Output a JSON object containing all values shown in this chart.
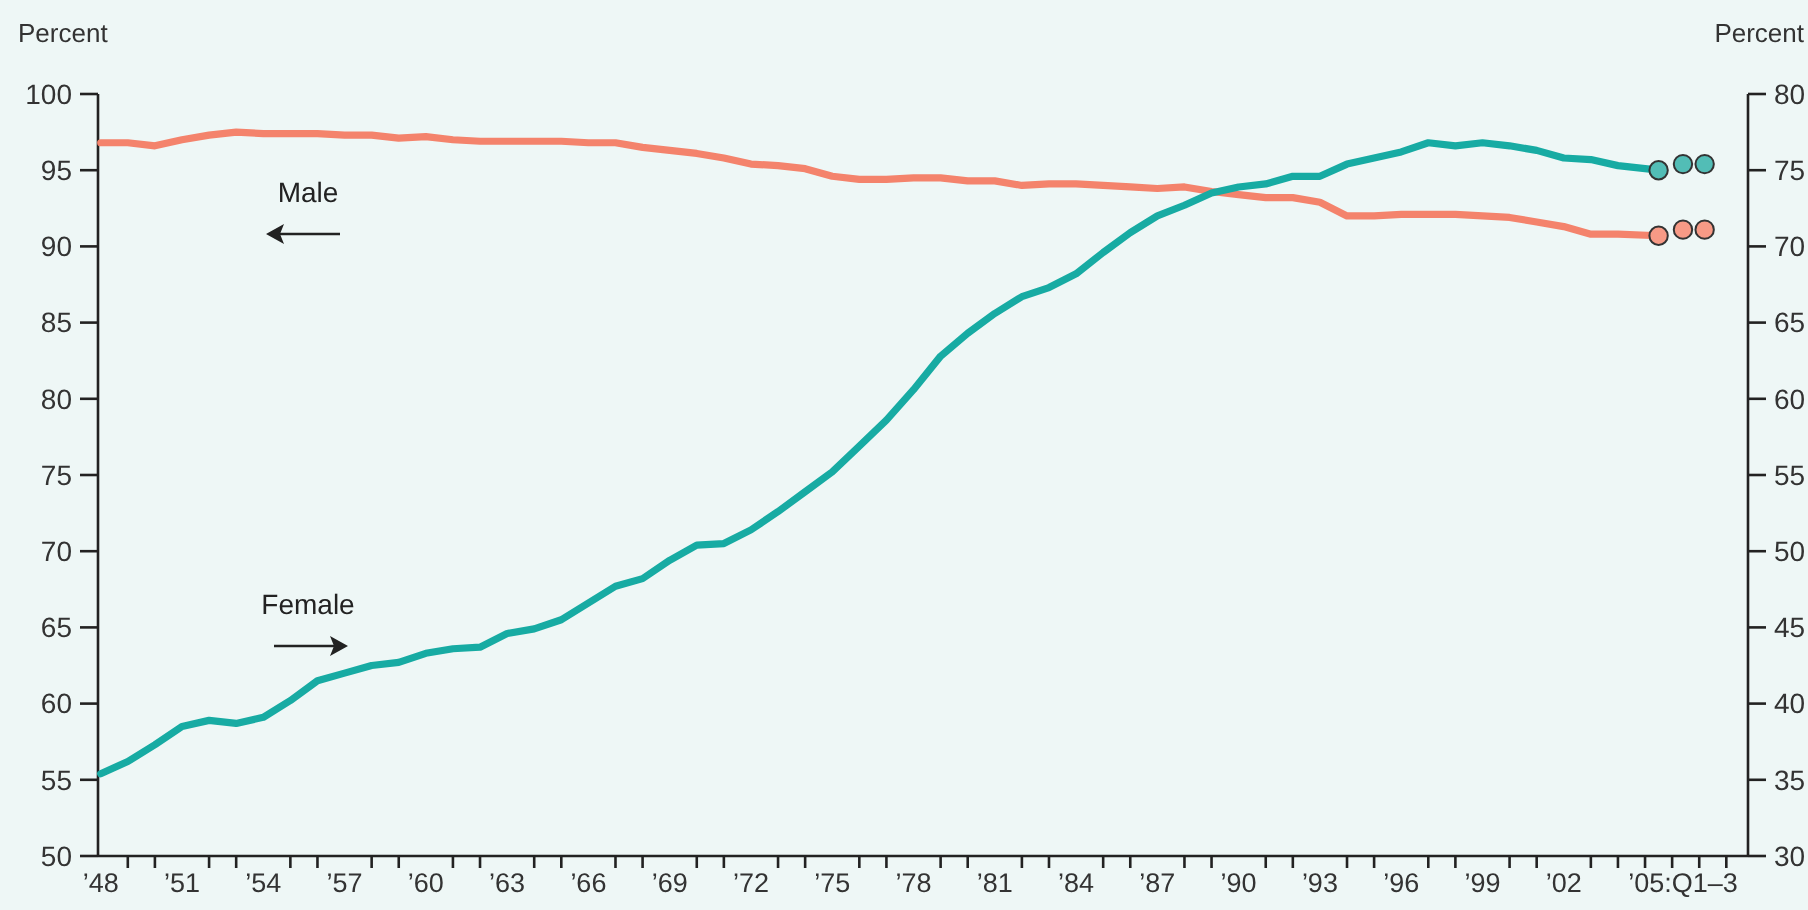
{
  "chart_data": {
    "type": "line",
    "ylabel": "Percent",
    "y2label": "Percent",
    "xlim": [
      1947.9,
      2008.8
    ],
    "ylim": [
      50,
      100
    ],
    "y2lim": [
      30,
      80
    ],
    "yticks": [
      50,
      55,
      60,
      65,
      70,
      75,
      80,
      85,
      90,
      95,
      100
    ],
    "y2ticks": [
      30,
      35,
      40,
      45,
      50,
      55,
      60,
      65,
      70,
      75,
      80
    ],
    "xticks": [
      {
        "value": 1948,
        "label": "’48"
      },
      {
        "value": 1949,
        "label": null
      },
      {
        "value": 1950,
        "label": null
      },
      {
        "value": 1951,
        "label": "’51"
      },
      {
        "value": 1952,
        "label": null
      },
      {
        "value": 1953,
        "label": null
      },
      {
        "value": 1954,
        "label": "’54"
      },
      {
        "value": 1955,
        "label": null
      },
      {
        "value": 1956,
        "label": null
      },
      {
        "value": 1957,
        "label": "’57"
      },
      {
        "value": 1958,
        "label": null
      },
      {
        "value": 1959,
        "label": null
      },
      {
        "value": 1960,
        "label": "’60"
      },
      {
        "value": 1961,
        "label": null
      },
      {
        "value": 1962,
        "label": null
      },
      {
        "value": 1963,
        "label": "’63"
      },
      {
        "value": 1964,
        "label": null
      },
      {
        "value": 1965,
        "label": null
      },
      {
        "value": 1966,
        "label": "’66"
      },
      {
        "value": 1967,
        "label": null
      },
      {
        "value": 1968,
        "label": null
      },
      {
        "value": 1969,
        "label": "’69"
      },
      {
        "value": 1970,
        "label": null
      },
      {
        "value": 1971,
        "label": null
      },
      {
        "value": 1972,
        "label": "’72"
      },
      {
        "value": 1973,
        "label": null
      },
      {
        "value": 1974,
        "label": null
      },
      {
        "value": 1975,
        "label": "’75"
      },
      {
        "value": 1976,
        "label": null
      },
      {
        "value": 1977,
        "label": null
      },
      {
        "value": 1978,
        "label": "’78"
      },
      {
        "value": 1979,
        "label": null
      },
      {
        "value": 1980,
        "label": null
      },
      {
        "value": 1981,
        "label": "’81"
      },
      {
        "value": 1982,
        "label": null
      },
      {
        "value": 1983,
        "label": null
      },
      {
        "value": 1984,
        "label": "’84"
      },
      {
        "value": 1985,
        "label": null
      },
      {
        "value": 1986,
        "label": null
      },
      {
        "value": 1987,
        "label": "’87"
      },
      {
        "value": 1988,
        "label": null
      },
      {
        "value": 1989,
        "label": null
      },
      {
        "value": 1990,
        "label": "’90"
      },
      {
        "value": 1991,
        "label": null
      },
      {
        "value": 1992,
        "label": null
      },
      {
        "value": 1993,
        "label": "’93"
      },
      {
        "value": 1994,
        "label": null
      },
      {
        "value": 1995,
        "label": null
      },
      {
        "value": 1996,
        "label": "’96"
      },
      {
        "value": 1997,
        "label": null
      },
      {
        "value": 1998,
        "label": null
      },
      {
        "value": 1999,
        "label": "’99"
      },
      {
        "value": 2000,
        "label": null
      },
      {
        "value": 2001,
        "label": null
      },
      {
        "value": 2002,
        "label": "’02"
      },
      {
        "value": 2003,
        "label": null
      },
      {
        "value": 2004,
        "label": null
      },
      {
        "value": 2005,
        "label": null
      },
      {
        "value": 2006,
        "label": null
      },
      {
        "value": 2007,
        "label": null
      },
      {
        "value": 2008,
        "label": null
      },
      {
        "value": 2006.4,
        "label": "’05:Q1–3"
      }
    ],
    "grid": false,
    "line_style": "solid",
    "series": [
      {
        "name": "Male",
        "axis": "y",
        "marker": "none",
        "color": "#f4836c",
        "x": [
          1948,
          1949,
          1950,
          1951,
          1952,
          1953,
          1954,
          1955,
          1956,
          1957,
          1958,
          1959,
          1960,
          1961,
          1962,
          1963,
          1964,
          1965,
          1966,
          1967,
          1968,
          1969,
          1970,
          1971,
          1972,
          1973,
          1974,
          1975,
          1976,
          1977,
          1978,
          1979,
          1980,
          1981,
          1982,
          1983,
          1984,
          1985,
          1986,
          1987,
          1988,
          1989,
          1990,
          1991,
          1992,
          1993,
          1994,
          1995,
          1996,
          1997,
          1998,
          1999,
          2000,
          2001,
          2002,
          2003,
          2004,
          2005.5
        ],
        "values": [
          96.8,
          96.8,
          96.6,
          97.0,
          97.3,
          97.5,
          97.4,
          97.4,
          97.4,
          97.3,
          97.3,
          97.1,
          97.2,
          97.0,
          96.9,
          96.9,
          96.9,
          96.9,
          96.8,
          96.8,
          96.5,
          96.3,
          96.1,
          95.8,
          95.4,
          95.3,
          95.1,
          94.6,
          94.4,
          94.4,
          94.5,
          94.5,
          94.3,
          94.3,
          94.0,
          94.1,
          94.1,
          94.0,
          93.9,
          93.8,
          93.9,
          93.6,
          93.4,
          93.2,
          93.2,
          92.9,
          92.0,
          92.0,
          92.1,
          92.1,
          92.1,
          92.0,
          91.9,
          91.6,
          91.3,
          90.8,
          90.8,
          90.7
        ]
      },
      {
        "name": "Female",
        "axis": "y2",
        "marker": "none",
        "color": "#17aba3",
        "x": [
          1948,
          1949,
          1950,
          1951,
          1952,
          1953,
          1954,
          1955,
          1956,
          1957,
          1958,
          1959,
          1960,
          1961,
          1962,
          1963,
          1964,
          1965,
          1966,
          1967,
          1968,
          1969,
          1970,
          1971,
          1972,
          1973,
          1974,
          1975,
          1976,
          1977,
          1978,
          1979,
          1980,
          1981,
          1982,
          1983,
          1984,
          1985,
          1986,
          1987,
          1988,
          1989,
          1990,
          1991,
          1992,
          1993,
          1994,
          1995,
          1996,
          1997,
          1998,
          1999,
          2000,
          2001,
          2002,
          2003,
          2004,
          2005.5
        ],
        "values": [
          35.4,
          36.2,
          37.3,
          38.5,
          38.9,
          38.7,
          39.1,
          40.2,
          41.5,
          42.0,
          42.5,
          42.7,
          43.3,
          43.6,
          43.7,
          44.6,
          44.9,
          45.5,
          46.6,
          47.7,
          48.2,
          49.4,
          50.4,
          50.5,
          51.4,
          52.6,
          53.9,
          55.2,
          56.9,
          58.6,
          60.6,
          62.8,
          64.3,
          65.6,
          66.7,
          67.3,
          68.2,
          69.6,
          70.9,
          72.0,
          72.7,
          73.5,
          73.9,
          74.1,
          74.6,
          74.6,
          75.4,
          75.8,
          76.2,
          76.8,
          76.6,
          76.8,
          76.6,
          76.3,
          75.8,
          75.7,
          75.3,
          75.0
        ]
      },
      {
        "type": "scatter",
        "axis": "y",
        "marker": "circle",
        "color": "#f79a86",
        "x": [
          2005.5,
          2006.4,
          2007.2
        ],
        "values": [
          90.7,
          91.1,
          91.1
        ]
      },
      {
        "type": "scatter",
        "axis": "y2",
        "marker": "circle",
        "color": "#52bdb6",
        "x": [
          2005.5,
          2006.4,
          2007.2
        ],
        "values": [
          75.0,
          75.4,
          75.4
        ]
      }
    ]
  }
}
